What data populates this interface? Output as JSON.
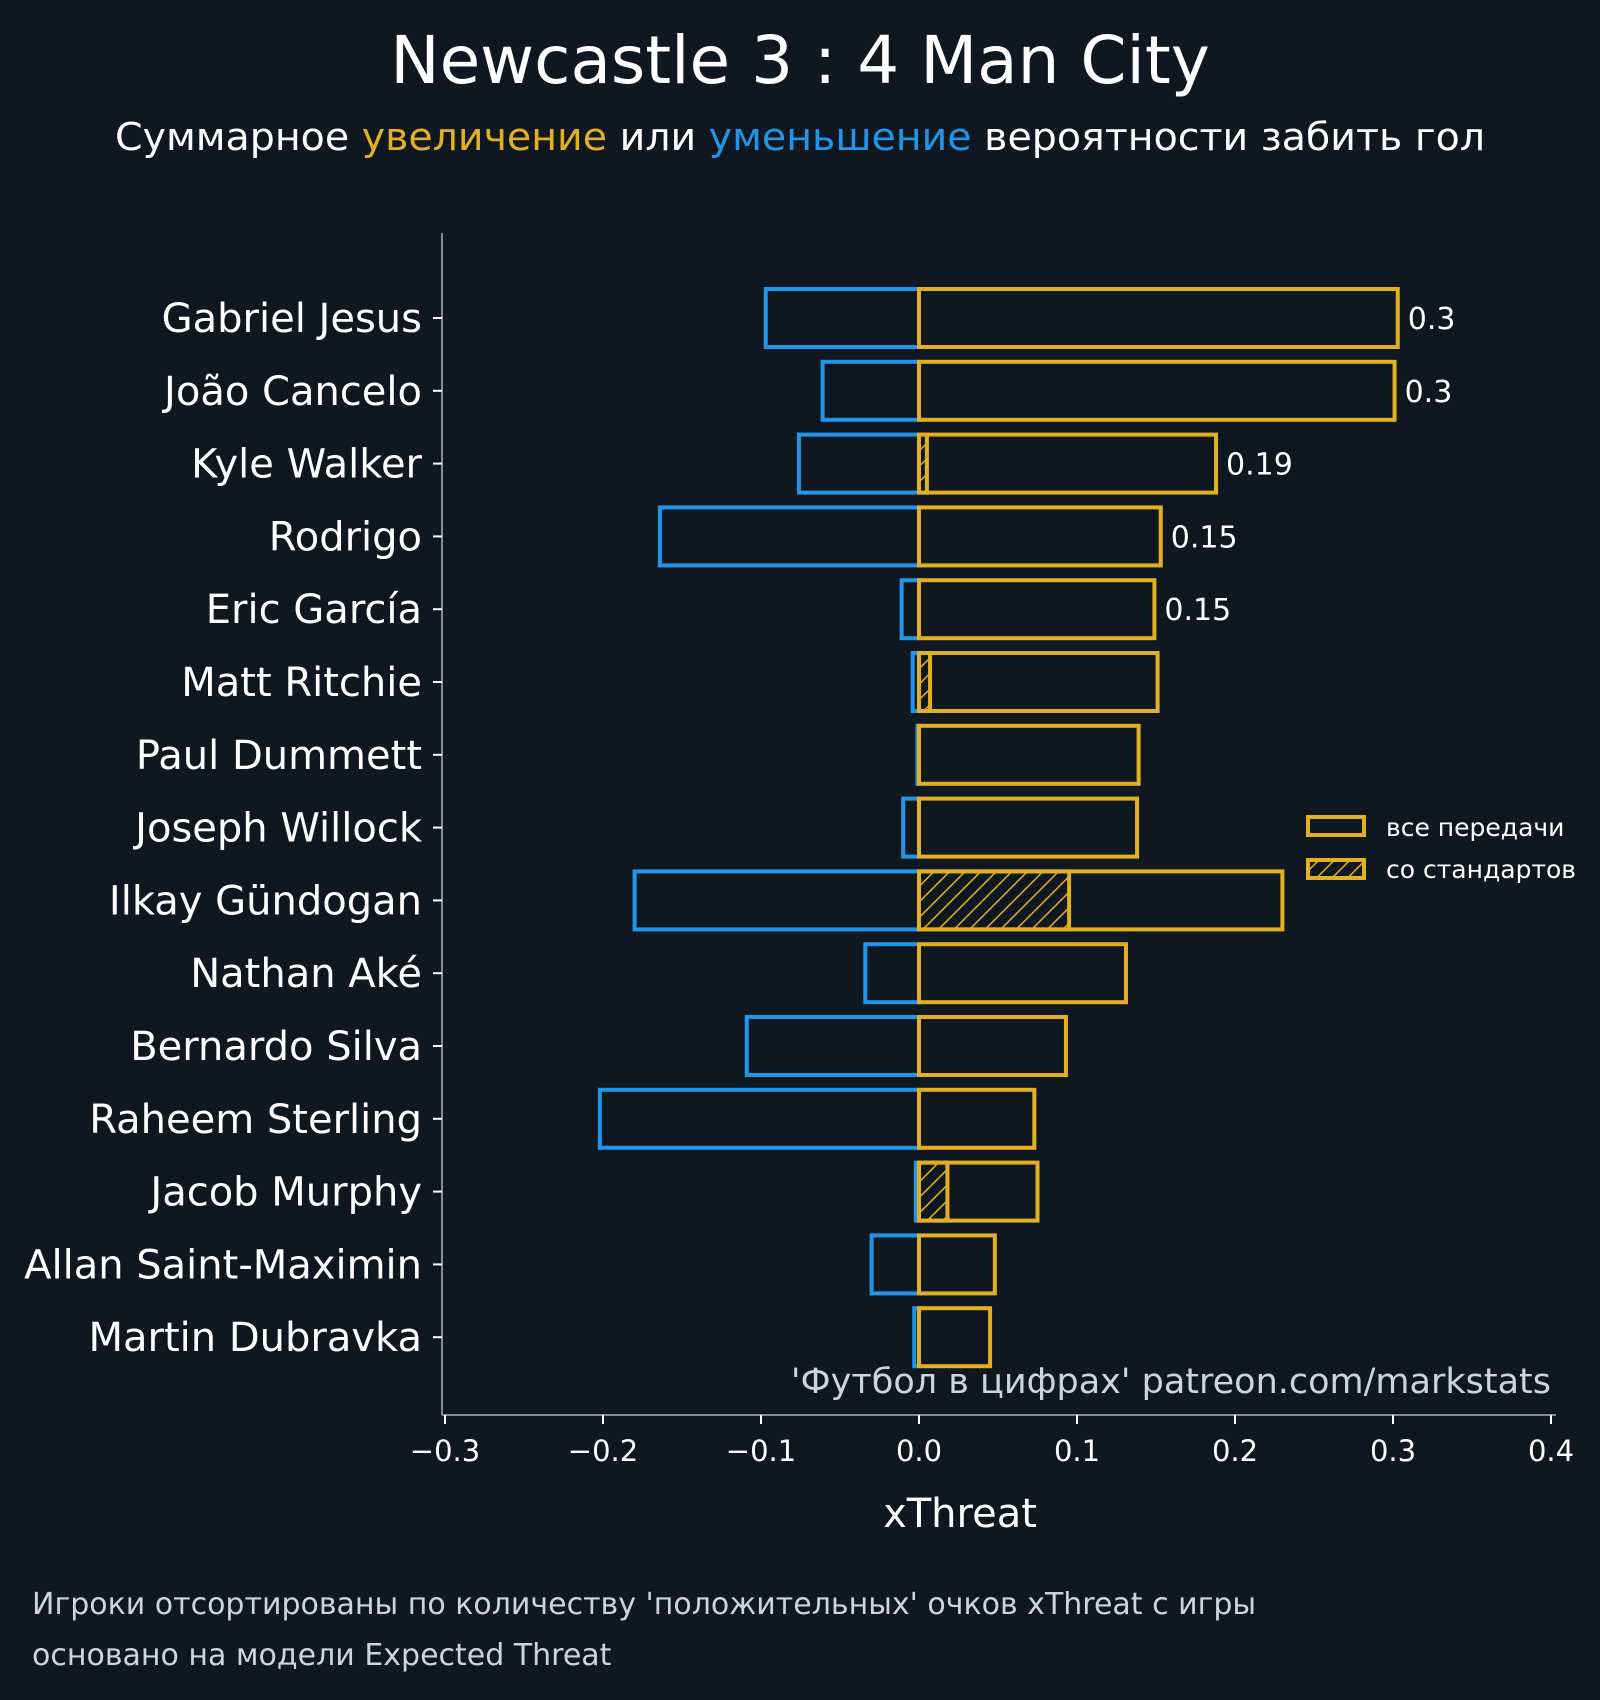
{
  "colors": {
    "background": "#0f1820",
    "positive": "#e3b022",
    "negative": "#2196e8",
    "axis": "#7f8c96",
    "text": "#ffffff",
    "muted": "#d0d4d8"
  },
  "header": {
    "title": "Newcastle 3 : 4 Man City",
    "subtitle_1": "Суммарное ",
    "subtitle_2": "увеличение",
    "subtitle_3": " или ",
    "subtitle_4": "уменьшение",
    "subtitle_5": " вероятности забить гол"
  },
  "legend": {
    "all_passes": "все передачи",
    "set_pieces": "со стандартов"
  },
  "watermark": "'Футбол в цифрах' patreon.com/markstats",
  "footnotes": [
    "Игроки отсортированы по количеству 'положительных' очков xThreat с игры",
    "основано на модели Expected Threat"
  ],
  "chart_data": {
    "type": "bar",
    "orientation": "horizontal",
    "xlabel": "xThreat",
    "xlim": [
      -0.3,
      0.4
    ],
    "xticks": [
      -0.3,
      -0.2,
      -0.1,
      0.0,
      0.1,
      0.2,
      0.3,
      0.4
    ],
    "xtick_labels": [
      "−0.3",
      "−0.2",
      "−0.1",
      "0.0",
      "0.1",
      "0.2",
      "0.3",
      "0.4"
    ],
    "categories": [
      "Gabriel Jesus",
      "João Cancelo",
      "Kyle Walker",
      "Rodrigo",
      "Eric García",
      "Matt Ritchie",
      "Paul Dummett",
      "Joseph Willock",
      "Ilkay Gündogan",
      "Nathan Aké",
      "Bernardo Silva",
      "Raheem Sterling",
      "Jacob Murphy",
      "Allan Saint-Maximin",
      "Martin Dubravka"
    ],
    "series": [
      {
        "name": "все передачи",
        "role": "positive",
        "values": [
          0.303,
          0.301,
          0.188,
          0.153,
          0.149,
          0.151,
          0.139,
          0.138,
          0.23,
          0.131,
          0.093,
          0.073,
          0.075,
          0.048,
          0.045
        ]
      },
      {
        "name": "со стандартов",
        "role": "set_pieces",
        "values": [
          0,
          0,
          0.005,
          0,
          0,
          0.007,
          0,
          0,
          0.095,
          0,
          0,
          0,
          0.018,
          0,
          0
        ]
      },
      {
        "role": "negative",
        "values": [
          -0.097,
          -0.061,
          -0.076,
          -0.164,
          -0.011,
          -0.004,
          -0.001,
          -0.01,
          -0.18,
          -0.034,
          -0.109,
          -0.202,
          -0.002,
          -0.03,
          -0.003
        ]
      }
    ],
    "value_labels": [
      "0.3",
      "0.3",
      "0.19",
      "0.15",
      "0.15",
      "",
      "",
      "",
      "",
      "",
      "",
      "",
      "",
      "",
      ""
    ],
    "legend_position": "center-right",
    "grid": false
  }
}
